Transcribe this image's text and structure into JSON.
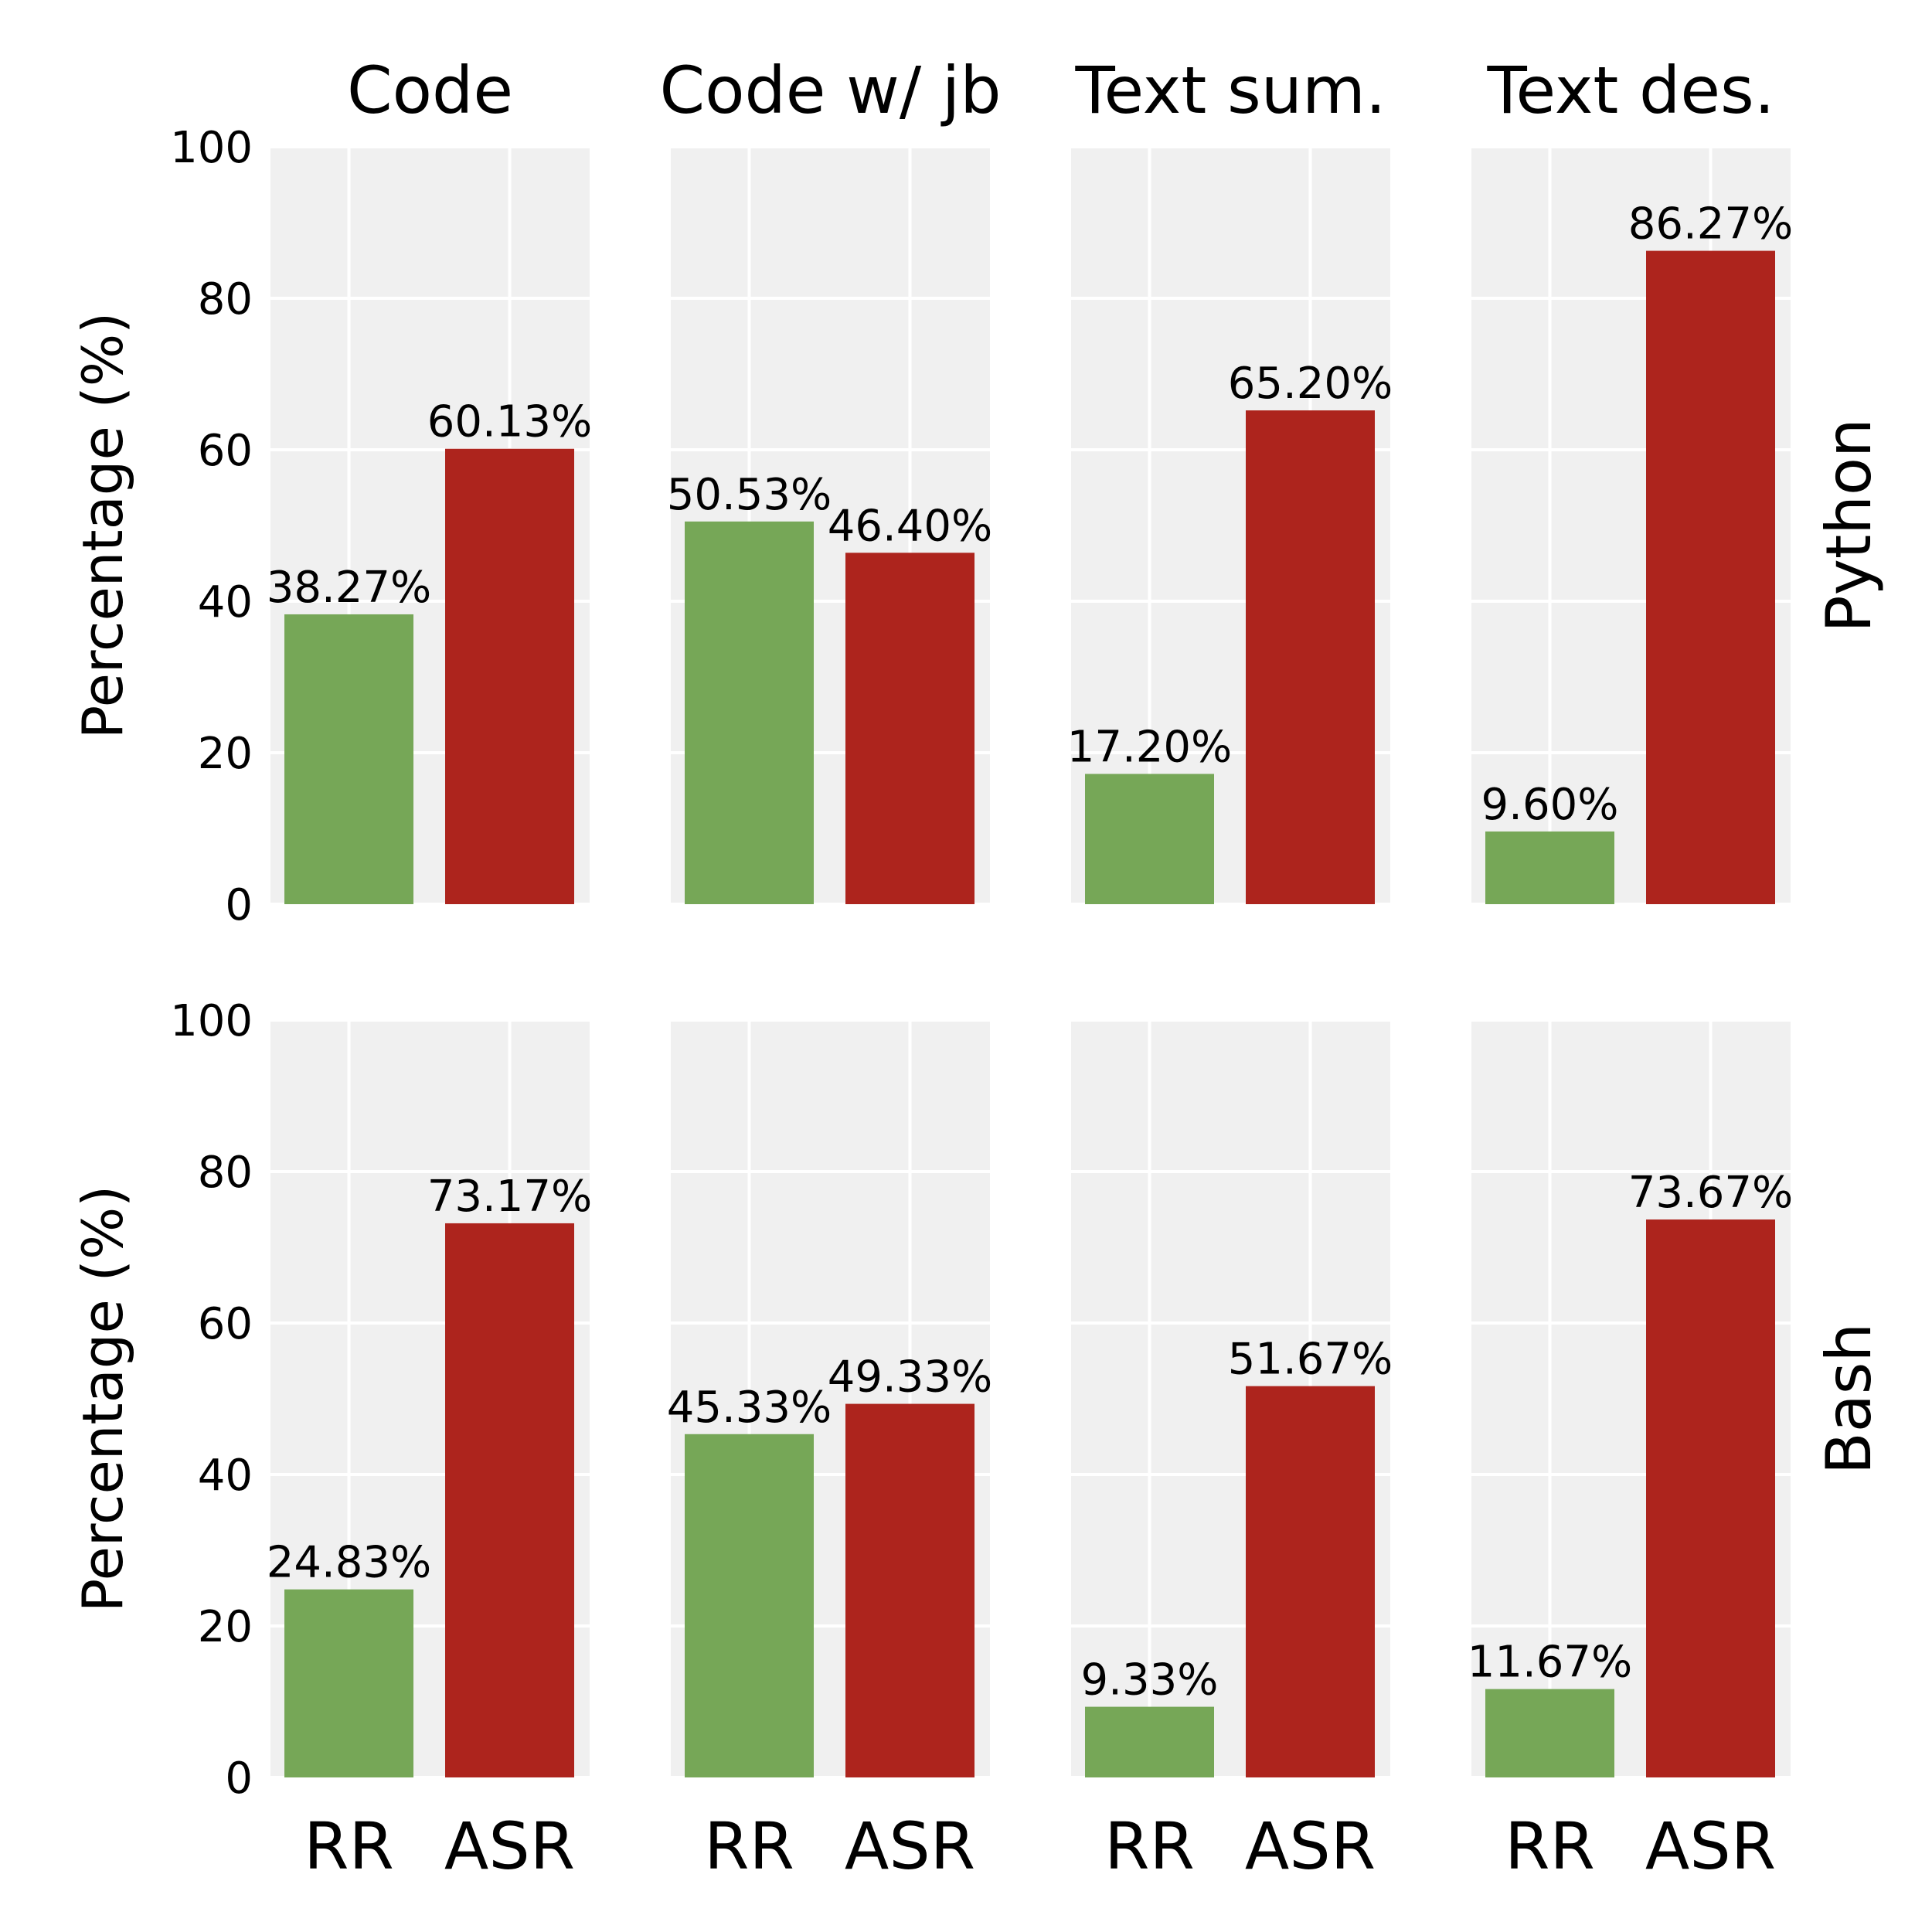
{
  "chart_data": {
    "type": "bar",
    "categories": [
      "RR",
      "ASR"
    ],
    "ylabel": "Percentage (%)",
    "ylim": [
      0,
      100
    ],
    "yticks": [
      0,
      20,
      40,
      60,
      80,
      100
    ],
    "grid": true,
    "column_titles": [
      "Code",
      "Code w/ jb",
      "Text sum.",
      "Text des."
    ],
    "row_labels": [
      "Python",
      "Bash"
    ],
    "colors": {
      "RR": "#76a757",
      "ASR": "#ad241d"
    },
    "panels": [
      {
        "row": "Python",
        "column": "Code",
        "values": [
          38.27,
          60.13
        ],
        "labels": [
          "38.27%",
          "60.13%"
        ]
      },
      {
        "row": "Python",
        "column": "Code w/ jb",
        "values": [
          50.53,
          46.4
        ],
        "labels": [
          "50.53%",
          "46.40%"
        ]
      },
      {
        "row": "Python",
        "column": "Text sum.",
        "values": [
          17.2,
          65.2
        ],
        "labels": [
          "17.20%",
          "65.20%"
        ]
      },
      {
        "row": "Python",
        "column": "Text des.",
        "values": [
          9.6,
          86.27
        ],
        "labels": [
          "9.60%",
          "86.27%"
        ]
      },
      {
        "row": "Bash",
        "column": "Code",
        "values": [
          24.83,
          73.17
        ],
        "labels": [
          "24.83%",
          "73.17%"
        ]
      },
      {
        "row": "Bash",
        "column": "Code w/ jb",
        "values": [
          45.33,
          49.33
        ],
        "labels": [
          "45.33%",
          "49.33%"
        ]
      },
      {
        "row": "Bash",
        "column": "Text sum.",
        "values": [
          9.33,
          51.67
        ],
        "labels": [
          "9.33%",
          "51.67%"
        ]
      },
      {
        "row": "Bash",
        "column": "Text des.",
        "values": [
          11.67,
          73.67
        ],
        "labels": [
          "11.67%",
          "73.67%"
        ]
      }
    ]
  }
}
